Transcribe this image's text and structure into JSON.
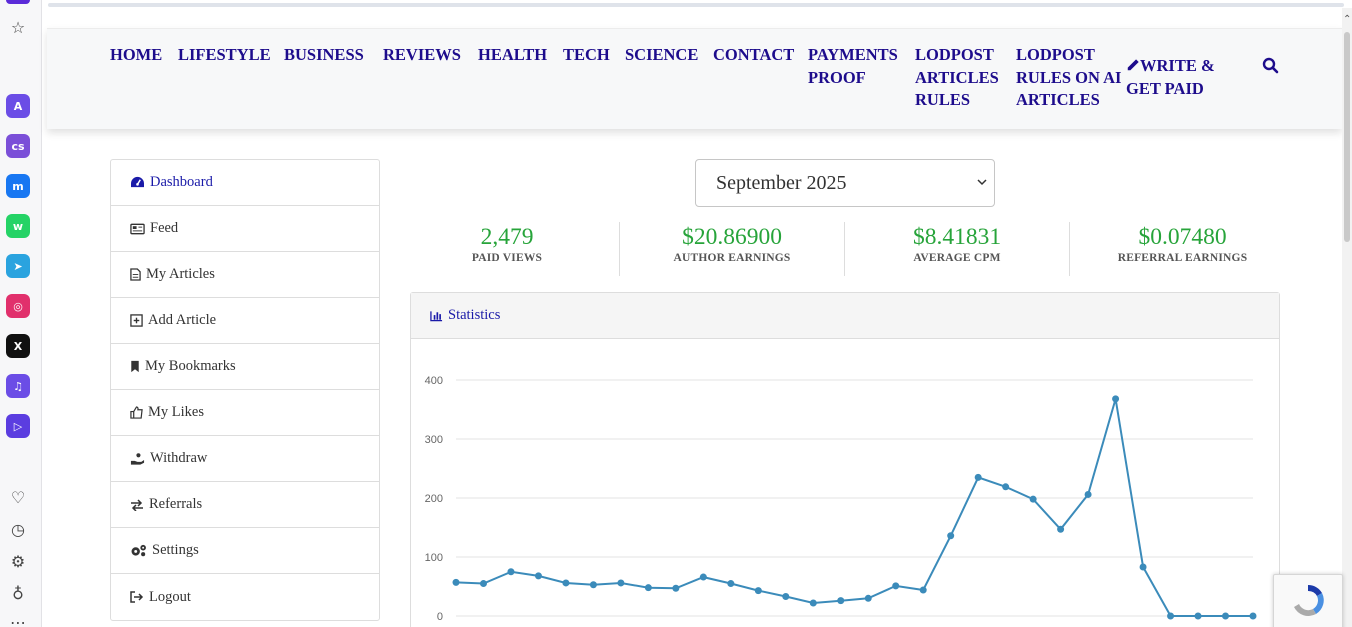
{
  "nav": {
    "items": [
      {
        "label": "HOME"
      },
      {
        "label": "LIFESTYLE"
      },
      {
        "label": "BUSINESS"
      },
      {
        "label": "REVIEWS"
      },
      {
        "label": "HEALTH"
      },
      {
        "label": "TECH"
      },
      {
        "label": "SCIENCE"
      },
      {
        "label": "CONTACT"
      },
      {
        "label": "PAYMENTS PROOF"
      },
      {
        "label": "LODPOST ARTICLES RULES"
      },
      {
        "label": "LODPOST RULES ON AI ARTICLES"
      },
      {
        "label": "WRITE & GET PAID"
      }
    ],
    "search_icon": "search-icon"
  },
  "menu": {
    "items": [
      {
        "label": "Dashboard",
        "icon": "dashboard-icon"
      },
      {
        "label": "Feed",
        "icon": "newspaper-icon"
      },
      {
        "label": "My Articles",
        "icon": "file-icon"
      },
      {
        "label": "Add Article",
        "icon": "plus-square-icon"
      },
      {
        "label": "My Bookmarks",
        "icon": "bookmark-icon"
      },
      {
        "label": "My Likes",
        "icon": "thumbs-up-icon"
      },
      {
        "label": "Withdraw",
        "icon": "hand-money-icon"
      },
      {
        "label": "Referrals",
        "icon": "exchange-icon"
      },
      {
        "label": "Settings",
        "icon": "gears-icon"
      },
      {
        "label": "Logout",
        "icon": "sign-out-icon"
      }
    ]
  },
  "month_select": {
    "value": "September 2025"
  },
  "stats": [
    {
      "value": "2,479",
      "label": "PAID VIEWS"
    },
    {
      "value": "$20.86900",
      "label": "AUTHOR EARNINGS"
    },
    {
      "value": "$8.41831",
      "label": "AVERAGE CPM"
    },
    {
      "value": "$0.07480",
      "label": "REFERRAL EARNINGS"
    }
  ],
  "statistics_panel": {
    "title": "Statistics"
  },
  "colors": {
    "accent": "#1d0c8c",
    "stat_green": "#27a43a",
    "line": "#3b8bba"
  },
  "chart_data": {
    "type": "line",
    "title": "",
    "xlabel": "",
    "ylabel": "",
    "ylim": [
      0,
      400
    ],
    "yticks": [
      0,
      100,
      200,
      300,
      400
    ],
    "grid": true,
    "series": [
      {
        "values": [
          57,
          55,
          75,
          68,
          56,
          53,
          56,
          48,
          47,
          66,
          55,
          43,
          33,
          22,
          26,
          30,
          51,
          44,
          136,
          235,
          219,
          198,
          147,
          206,
          368,
          83,
          0,
          0,
          0,
          0
        ]
      }
    ]
  }
}
